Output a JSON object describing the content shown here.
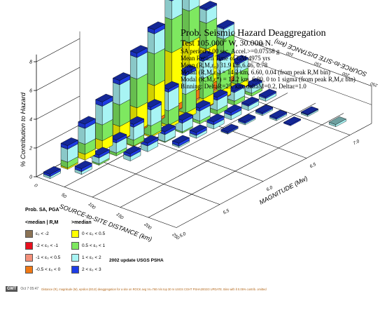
{
  "title_block": {
    "line1": "Prob. Seismic Hazard Deaggregation",
    "line2": "Test  105.000º W, 30.000 N.",
    "line3": "SA period 2.00 sec. Accel.>=0.07558  g",
    "line4": "Mean Return Time of GM 4975 yrs",
    "line5": "Mean (R,M,ε₀) 31.9 km,6.46,  0.78",
    "line6": "Modal (R,M,ε₀) = 14.2 km, 6.60, 0.04 (from peak R,M bin)",
    "line7": "Modal (R,M,ε*) = 14.2 km, 6.80, 0 to 1 sigma  (from peak R,M,ε bin)",
    "line8": "Binning: DeltaR=25. km, deltaM=0.2, Deltaε=1.0"
  },
  "legend": {
    "title": "Prob. SA, PGA",
    "below_header": "<median | R,M",
    "above_header": ">median",
    "items_below": [
      {
        "label": "ε₀ < -2",
        "color": "#8b7355"
      },
      {
        "label": "-2 < ε₀ < -1",
        "color": "#e8101e"
      },
      {
        "label": "-1 < ε₀ < 0.5",
        "color": "#f4907a"
      },
      {
        "label": "-0.5 < ε₀ < 0",
        "color": "#f07814"
      }
    ],
    "items_above": [
      {
        "label": "0 < ε₀ < 0.5",
        "color": "#ffff00"
      },
      {
        "label": "0.5 < ε₀ < 1",
        "color": "#7ee860"
      },
      {
        "label": "1 < ε₀ < 2",
        "color": "#a8f4f4"
      },
      {
        "label": "2 < ε₀ < 3",
        "color": "#1e3ce6"
      }
    ]
  },
  "psha_note": "2002 update USGS PSHA",
  "footer": {
    "gmt": "GMT",
    "date": "Oct 7 05:47",
    "note": "Distance (R), magnitude (M), epsilon (E0,E) deaggregation for a site on ROCK avg Vs=760 m/s top 30 m USGS CGHT PSHA2002r3 UPDATE. Bins with lt 0.05% contrib. omitted"
  },
  "chart_data": {
    "type": "bar",
    "zlabel": "% Contribution to Hazard",
    "xlabel": "SOURCE-to-SITE DISTANCE (km)",
    "xlabel_back": "SOURCE-to-SITE DISTANCE (km)",
    "ylabel": "MAGNITUDE (Mw)",
    "z_ticks": [
      "0",
      "2",
      "4",
      "6",
      "8"
    ],
    "x_ticks": [
      "0",
      "50",
      "100",
      "150",
      "200",
      "250"
    ],
    "y_ticks": [
      "5.0",
      "5.5",
      "6.0",
      "6.5",
      "7.0"
    ],
    "back_x_ticks": [
      "0",
      "50",
      "100",
      "150",
      "200",
      "250"
    ],
    "zlim": [
      0,
      9
    ],
    "xlim": [
      0,
      250
    ],
    "ylim": [
      5.0,
      7.25
    ],
    "epsilon_bins": [
      "ε₀ < -2",
      "-2 < ε₀ < -1",
      "-1 < ε₀ < 0.5",
      "-0.5 < ε₀ < 0",
      "0 < ε₀ < 0.5",
      "0.5 < ε₀ < 1",
      "1 < ε₀ < 2",
      "2 < ε₀ < 3"
    ],
    "bars": [
      {
        "r": 12.5,
        "m": 5.1,
        "seg": [
          0,
          0,
          0,
          0,
          0,
          0,
          0.15,
          0.15
        ]
      },
      {
        "r": 12.5,
        "m": 5.3,
        "seg": [
          0,
          0,
          0,
          0,
          0.1,
          0.4,
          0.9,
          0.25
        ]
      },
      {
        "r": 12.5,
        "m": 5.5,
        "seg": [
          0,
          0,
          0,
          0,
          0.4,
          0.7,
          1.1,
          0.3
        ]
      },
      {
        "r": 12.5,
        "m": 5.7,
        "seg": [
          0,
          0,
          0,
          0,
          0.7,
          1.1,
          1.3,
          0.3
        ]
      },
      {
        "r": 12.5,
        "m": 5.9,
        "seg": [
          0,
          0,
          0,
          0.05,
          1.0,
          1.5,
          1.4,
          0.3
        ]
      },
      {
        "r": 12.5,
        "m": 6.1,
        "seg": [
          0,
          0,
          0,
          0.1,
          1.6,
          2.0,
          1.5,
          0.3
        ]
      },
      {
        "r": 12.5,
        "m": 6.3,
        "seg": [
          0,
          0,
          0,
          0.2,
          2.4,
          2.2,
          1.4,
          0.3
        ]
      },
      {
        "r": 12.5,
        "m": 6.5,
        "seg": [
          0,
          0,
          0.05,
          0.4,
          3.8,
          2.3,
          1.3,
          0.2
        ]
      },
      {
        "r": 12.5,
        "m": 6.7,
        "seg": [
          0,
          0,
          0.1,
          0.6,
          3.6,
          2.2,
          1.2,
          0.2
        ]
      },
      {
        "r": 12.5,
        "m": 6.9,
        "seg": [
          0,
          0,
          0.1,
          0.5,
          2.6,
          1.8,
          0.9,
          0.1
        ]
      },
      {
        "r": 12.5,
        "m": 7.1,
        "seg": [
          0,
          0,
          0.05,
          0.3,
          1.6,
          1.3,
          0.7,
          0.1
        ]
      },
      {
        "r": 37.5,
        "m": 5.3,
        "seg": [
          0,
          0,
          0,
          0,
          0,
          0,
          0.2,
          0.2
        ]
      },
      {
        "r": 37.5,
        "m": 5.5,
        "seg": [
          0,
          0,
          0,
          0,
          0,
          0.1,
          0.4,
          0.2
        ]
      },
      {
        "r": 37.5,
        "m": 5.7,
        "seg": [
          0,
          0,
          0,
          0,
          0,
          0.2,
          0.7,
          0.2
        ]
      },
      {
        "r": 37.5,
        "m": 5.9,
        "seg": [
          0,
          0,
          0,
          0,
          0.05,
          0.4,
          0.9,
          0.2
        ]
      },
      {
        "r": 37.5,
        "m": 6.1,
        "seg": [
          0,
          0,
          0,
          0,
          0.1,
          0.7,
          1.1,
          0.2
        ]
      },
      {
        "r": 37.5,
        "m": 6.3,
        "seg": [
          0,
          0,
          0,
          0,
          0.2,
          1.0,
          1.3,
          0.2
        ]
      },
      {
        "r": 37.5,
        "m": 6.5,
        "seg": [
          0,
          0,
          0,
          0,
          0.4,
          1.3,
          1.3,
          0.2
        ]
      },
      {
        "r": 37.5,
        "m": 6.7,
        "seg": [
          0,
          0,
          0,
          0.05,
          0.7,
          1.4,
          1.2,
          0.2
        ]
      },
      {
        "r": 37.5,
        "m": 6.9,
        "seg": [
          0,
          0,
          0,
          0.05,
          0.6,
          1.2,
          0.9,
          0.1
        ]
      },
      {
        "r": 37.5,
        "m": 7.1,
        "seg": [
          0,
          0,
          0,
          0.05,
          0.4,
          0.8,
          0.6,
          0.1
        ]
      },
      {
        "r": 62.5,
        "m": 5.7,
        "seg": [
          0,
          0,
          0,
          0,
          0,
          0,
          0.3,
          0.2
        ]
      },
      {
        "r": 62.5,
        "m": 5.9,
        "seg": [
          0,
          0,
          0,
          0,
          0,
          0,
          0.4,
          0.2
        ]
      },
      {
        "r": 62.5,
        "m": 6.1,
        "seg": [
          0,
          0,
          0,
          0,
          0,
          0.05,
          0.5,
          0.2
        ]
      },
      {
        "r": 62.5,
        "m": 6.3,
        "seg": [
          0,
          0,
          0,
          0,
          0,
          0.1,
          0.6,
          0.2
        ]
      },
      {
        "r": 62.5,
        "m": 6.5,
        "seg": [
          0,
          0,
          0,
          0,
          0,
          0.2,
          0.7,
          0.2
        ]
      },
      {
        "r": 62.5,
        "m": 6.7,
        "seg": [
          0,
          0,
          0,
          0,
          0,
          0.3,
          0.7,
          0.2
        ]
      },
      {
        "r": 62.5,
        "m": 6.9,
        "seg": [
          0,
          0,
          0,
          0,
          0,
          0.3,
          0.6,
          0.1
        ]
      },
      {
        "r": 62.5,
        "m": 7.1,
        "seg": [
          0,
          0,
          0,
          0,
          0,
          0.2,
          0.4,
          0.1
        ]
      },
      {
        "r": 87.5,
        "m": 6.1,
        "seg": [
          0,
          0,
          0,
          0,
          0,
          0,
          0.1,
          0.2
        ]
      },
      {
        "r": 87.5,
        "m": 6.3,
        "seg": [
          0,
          0,
          0,
          0,
          0,
          0,
          0.2,
          0.2
        ]
      },
      {
        "r": 87.5,
        "m": 6.5,
        "seg": [
          0,
          0,
          0,
          0,
          0,
          0,
          0.3,
          0.2
        ]
      },
      {
        "r": 87.5,
        "m": 6.7,
        "seg": [
          0,
          0,
          0,
          0,
          0,
          0,
          0.3,
          0.2
        ]
      },
      {
        "r": 87.5,
        "m": 6.9,
        "seg": [
          0,
          0,
          0,
          0,
          0,
          0,
          0.3,
          0.1
        ]
      },
      {
        "r": 87.5,
        "m": 7.1,
        "seg": [
          0,
          0,
          0,
          0,
          0,
          0,
          0.2,
          0.1
        ]
      },
      {
        "r": 112.5,
        "m": 6.5,
        "seg": [
          0,
          0,
          0,
          0,
          0,
          0,
          0.05,
          0.1
        ]
      },
      {
        "r": 112.5,
        "m": 6.7,
        "seg": [
          0,
          0,
          0,
          0,
          0,
          0,
          0.1,
          0.1
        ]
      },
      {
        "r": 112.5,
        "m": 6.9,
        "seg": [
          0,
          0,
          0,
          0,
          0,
          0,
          0.1,
          0.1
        ]
      },
      {
        "r": 137.5,
        "m": 6.9,
        "seg": [
          0,
          0,
          0,
          0,
          0,
          0,
          0.1,
          0.1
        ]
      },
      {
        "r": 162.5,
        "m": 6.9,
        "seg": [
          0,
          0,
          0,
          0,
          0,
          0,
          0,
          0.08
        ]
      },
      {
        "r": 162.5,
        "m": 7.1,
        "seg": [
          0,
          0,
          0,
          0,
          0,
          0,
          0.1,
          0.05
        ]
      },
      {
        "r": 212.5,
        "m": 7.1,
        "seg": [
          0,
          0,
          0,
          0,
          0,
          0,
          0.15,
          0
        ]
      }
    ]
  }
}
